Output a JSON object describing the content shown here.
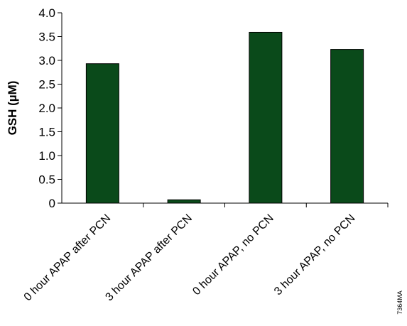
{
  "chart_data": {
    "type": "bar",
    "categories": [
      "0 hour APAP after PCN",
      "3 hour APAP after PCN",
      "0 hour APAP, no PCN",
      "3 hour APAP, no PCN"
    ],
    "values": [
      2.93,
      0.07,
      3.59,
      3.23
    ],
    "title": "",
    "xlabel": "",
    "ylabel": "GSH (µM)",
    "ylim": [
      0,
      4.0
    ],
    "yticks": [
      "0",
      "0.5",
      "1.0",
      "1.5",
      "2.0",
      "2.5",
      "3.0",
      "3.5",
      "4.0"
    ],
    "bar_color": "#0a4a1a",
    "bar_edge_color": "#000000",
    "grid": false,
    "legend": "none"
  },
  "catalog_id": "7364MA"
}
